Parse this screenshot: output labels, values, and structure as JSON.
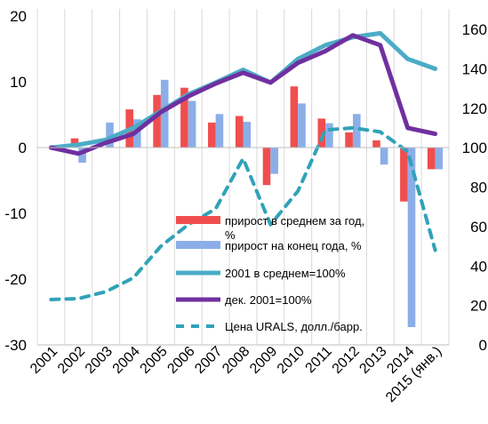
{
  "chart_data": {
    "type": "bar",
    "categories": [
      "2001",
      "2002",
      "2003",
      "2004",
      "2005",
      "2006",
      "2007",
      "2008",
      "2009",
      "2010",
      "2011",
      "2012",
      "2013",
      "2014",
      "2015 (янв.)"
    ],
    "left_axis": {
      "ylim": [
        -30,
        20
      ],
      "ticks": [
        "20",
        "10",
        "0",
        "-10",
        "-20",
        "-30"
      ]
    },
    "right_axis": {
      "ylim": [
        0,
        170
      ],
      "ticks": [
        "160",
        "140",
        "120",
        "100",
        "80",
        "60",
        "40",
        "20",
        "0"
      ]
    },
    "grid": "vertical",
    "series": [
      {
        "name": "прирост в среднем за год, %",
        "type": "bar",
        "axis": "left",
        "color": "#f04e4e",
        "values": [
          0,
          1.4,
          0,
          5.8,
          8.0,
          9.1,
          3.8,
          4.8,
          -5.7,
          9.3,
          4.4,
          2.3,
          1.1,
          -8.2,
          -3.3
        ]
      },
      {
        "name": "прирост на конец года, %",
        "type": "bar",
        "axis": "left",
        "color": "#8caee8",
        "values": [
          0,
          -2.3,
          3.8,
          4.3,
          10.3,
          7.1,
          5.1,
          3.9,
          -4.0,
          6.7,
          3.7,
          5.1,
          -2.6,
          -27.3,
          -3.3
        ]
      },
      {
        "name": "2001 в среднем=100%",
        "type": "line",
        "axis": "right",
        "color": "#4bacc6",
        "values": [
          100,
          101.5,
          104,
          110,
          118.5,
          127,
          133,
          139.5,
          133,
          145,
          152,
          156,
          158,
          145,
          140
        ]
      },
      {
        "name": "дек. 2001=100%",
        "type": "line",
        "axis": "right",
        "color": "#7030a0",
        "values": [
          100,
          97,
          102.5,
          107,
          118,
          126,
          132.5,
          138,
          133,
          143,
          149,
          157,
          152,
          110,
          107
        ]
      },
      {
        "name": "Цена URALS, долл./барр.",
        "type": "line-dashed",
        "axis": "right",
        "color": "#31a2b8",
        "values": [
          23,
          23.5,
          27,
          34,
          50,
          61,
          69,
          94.5,
          61,
          78,
          109,
          110,
          108,
          98,
          48
        ]
      }
    ]
  }
}
